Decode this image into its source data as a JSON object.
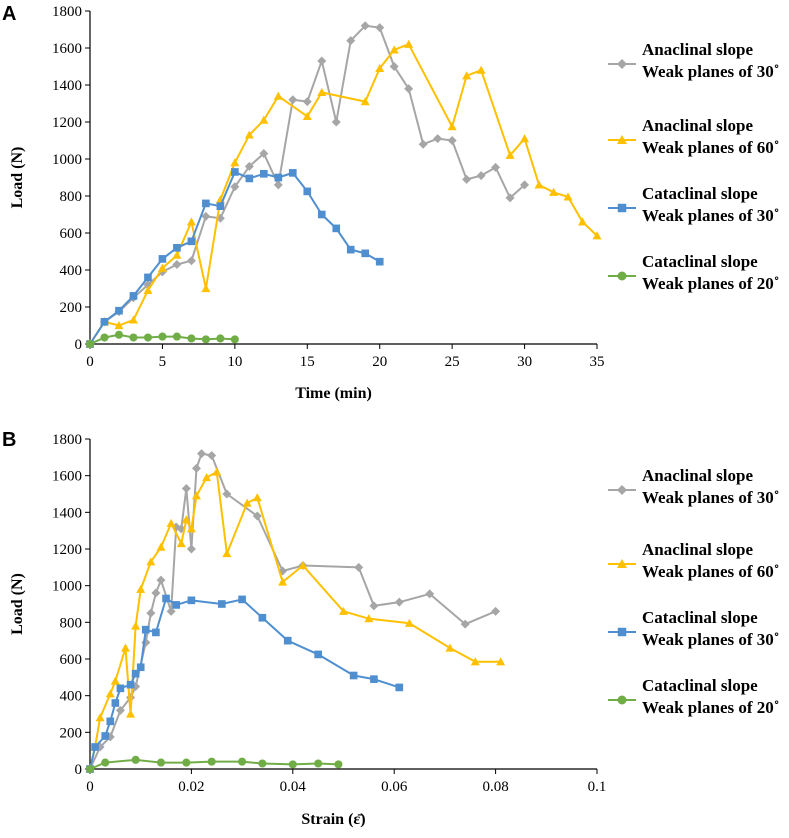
{
  "chart_data": [
    {
      "type": "line",
      "panel_label": "A",
      "xlabel": "Time (min)",
      "ylabel": "Load (N)",
      "xlim": [
        0,
        35
      ],
      "ylim": [
        0,
        1800
      ],
      "x_ticks": [
        "0",
        "5",
        "10",
        "15",
        "20",
        "25",
        "30",
        "35"
      ],
      "y_ticks": [
        "0",
        "200",
        "400",
        "600",
        "800",
        "1000",
        "1200",
        "1400",
        "1600",
        "1800"
      ],
      "grid": false,
      "legend_position": "right",
      "series": [
        {
          "name": "Anaclinal slope Weak planes of 30˚",
          "legend_line1": "Anaclinal slope",
          "legend_line2": "Weak planes of 30˚",
          "color": "#A6A6A6",
          "marker": "diamond",
          "x": [
            0,
            1,
            2,
            3,
            4,
            5,
            6,
            7,
            8,
            9,
            10,
            11,
            12,
            13,
            14,
            15,
            16,
            17,
            18,
            19,
            20,
            21,
            22,
            23,
            24,
            25,
            26,
            27,
            28,
            29,
            30
          ],
          "y": [
            0,
            120,
            175,
            250,
            320,
            390,
            430,
            450,
            690,
            680,
            850,
            960,
            1030,
            860,
            1320,
            1310,
            1530,
            1200,
            1640,
            1720,
            1710,
            1500,
            1380,
            1080,
            1110,
            1100,
            890,
            910,
            955,
            790,
            860
          ]
        },
        {
          "name": "Anaclinal slope Weak planes of 60˚",
          "legend_line1": "Anaclinal slope",
          "legend_line2": "Weak planes of 60˚",
          "color": "#FFC000",
          "marker": "triangle",
          "x": [
            0,
            1,
            2,
            3,
            4,
            5,
            6,
            7,
            8,
            9,
            10,
            11,
            12,
            13,
            15,
            16,
            19,
            20,
            21,
            22,
            25,
            26,
            27,
            29,
            30,
            31,
            32,
            33,
            34,
            35
          ],
          "y": [
            0,
            120,
            100,
            130,
            290,
            410,
            480,
            660,
            300,
            780,
            980,
            1130,
            1210,
            1340,
            1230,
            1360,
            1310,
            1490,
            1590,
            1620,
            1175,
            1450,
            1480,
            1020,
            1110,
            860,
            820,
            795,
            660,
            585
          ]
        },
        {
          "name": "Cataclinal slope Weak planes of 30˚",
          "legend_line1": "Cataclinal slope",
          "legend_line2": "Weak planes of 30˚",
          "color": "#4F8FD0",
          "marker": "square",
          "x": [
            0,
            1,
            2,
            3,
            4,
            5,
            6,
            7,
            8,
            9,
            10,
            11,
            12,
            13,
            14,
            15,
            16,
            17,
            18,
            19,
            20
          ],
          "y": [
            0,
            120,
            180,
            260,
            360,
            460,
            520,
            555,
            760,
            745,
            930,
            895,
            920,
            900,
            925,
            825,
            700,
            625,
            510,
            490,
            445
          ]
        },
        {
          "name": "Cataclinal slope Weak planes of 20˚",
          "legend_line1": "Cataclinal slope",
          "legend_line2": "Weak planes of 20˚",
          "color": "#70AD47",
          "marker": "circle",
          "x": [
            0,
            1,
            2,
            3,
            4,
            5,
            6,
            7,
            8,
            9,
            10
          ],
          "y": [
            0,
            35,
            50,
            35,
            35,
            40,
            40,
            30,
            25,
            30,
            25
          ]
        }
      ]
    },
    {
      "type": "line",
      "panel_label": "B",
      "xlabel": "Strain (ε̄)",
      "ylabel": "Load (N)",
      "xlim": [
        0,
        0.1
      ],
      "ylim": [
        0,
        1800
      ],
      "x_ticks": [
        "0",
        "0.02",
        "0.04",
        "0.06",
        "0.08",
        "0.1"
      ],
      "y_ticks": [
        "0",
        "200",
        "400",
        "600",
        "800",
        "1000",
        "1200",
        "1400",
        "1600",
        "1800"
      ],
      "grid": false,
      "legend_position": "right",
      "series": [
        {
          "name": "Anaclinal slope Weak planes of 30˚",
          "legend_line1": "Anaclinal slope",
          "legend_line2": "Weak planes of 30˚",
          "color": "#A6A6A6",
          "marker": "diamond",
          "x": [
            0,
            0.002,
            0.004,
            0.006,
            0.008,
            0.009,
            0.011,
            0.012,
            0.013,
            0.014,
            0.016,
            0.017,
            0.018,
            0.019,
            0.02,
            0.021,
            0.022,
            0.024,
            0.027,
            0.033,
            0.038,
            0.042,
            0.053,
            0.056,
            0.061,
            0.067,
            0.074,
            0.08
          ],
          "y": [
            0,
            120,
            175,
            320,
            390,
            450,
            690,
            850,
            960,
            1030,
            860,
            1320,
            1310,
            1530,
            1200,
            1640,
            1720,
            1710,
            1500,
            1380,
            1080,
            1110,
            1100,
            890,
            910,
            955,
            790,
            860
          ]
        },
        {
          "name": "Anaclinal slope Weak planes of 60˚",
          "legend_line1": "Anaclinal slope",
          "legend_line2": "Weak planes of 60˚",
          "color": "#FFC000",
          "marker": "triangle",
          "x": [
            0,
            0.001,
            0.002,
            0.004,
            0.005,
            0.007,
            0.008,
            0.009,
            0.01,
            0.012,
            0.014,
            0.016,
            0.018,
            0.019,
            0.02,
            0.021,
            0.023,
            0.025,
            0.027,
            0.031,
            0.033,
            0.038,
            0.042,
            0.05,
            0.055,
            0.063,
            0.071,
            0.076,
            0.081
          ],
          "y": [
            0,
            120,
            280,
            410,
            480,
            660,
            300,
            780,
            980,
            1130,
            1210,
            1340,
            1230,
            1360,
            1310,
            1490,
            1590,
            1620,
            1175,
            1450,
            1480,
            1020,
            1110,
            860,
            820,
            795,
            660,
            585,
            585
          ]
        },
        {
          "name": "Cataclinal slope Weak planes of 30˚",
          "legend_line1": "Cataclinal slope",
          "legend_line2": "Weak planes of 30˚",
          "color": "#4F8FD0",
          "marker": "square",
          "x": [
            0,
            0.001,
            0.003,
            0.004,
            0.005,
            0.006,
            0.008,
            0.009,
            0.01,
            0.011,
            0.013,
            0.015,
            0.017,
            0.02,
            0.026,
            0.03,
            0.034,
            0.039,
            0.045,
            0.052,
            0.056,
            0.061
          ],
          "y": [
            0,
            120,
            180,
            260,
            360,
            440,
            460,
            520,
            555,
            760,
            745,
            930,
            895,
            920,
            900,
            925,
            825,
            700,
            625,
            510,
            490,
            445
          ]
        },
        {
          "name": "Cataclinal slope Weak planes of 20˚",
          "legend_line1": "Cataclinal slope",
          "legend_line2": "Weak planes of 20˚",
          "color": "#70AD47",
          "marker": "circle",
          "x": [
            0,
            0.003,
            0.009,
            0.014,
            0.019,
            0.024,
            0.03,
            0.034,
            0.04,
            0.045,
            0.049
          ],
          "y": [
            0,
            35,
            50,
            35,
            35,
            40,
            40,
            30,
            25,
            30,
            25
          ]
        }
      ]
    }
  ]
}
